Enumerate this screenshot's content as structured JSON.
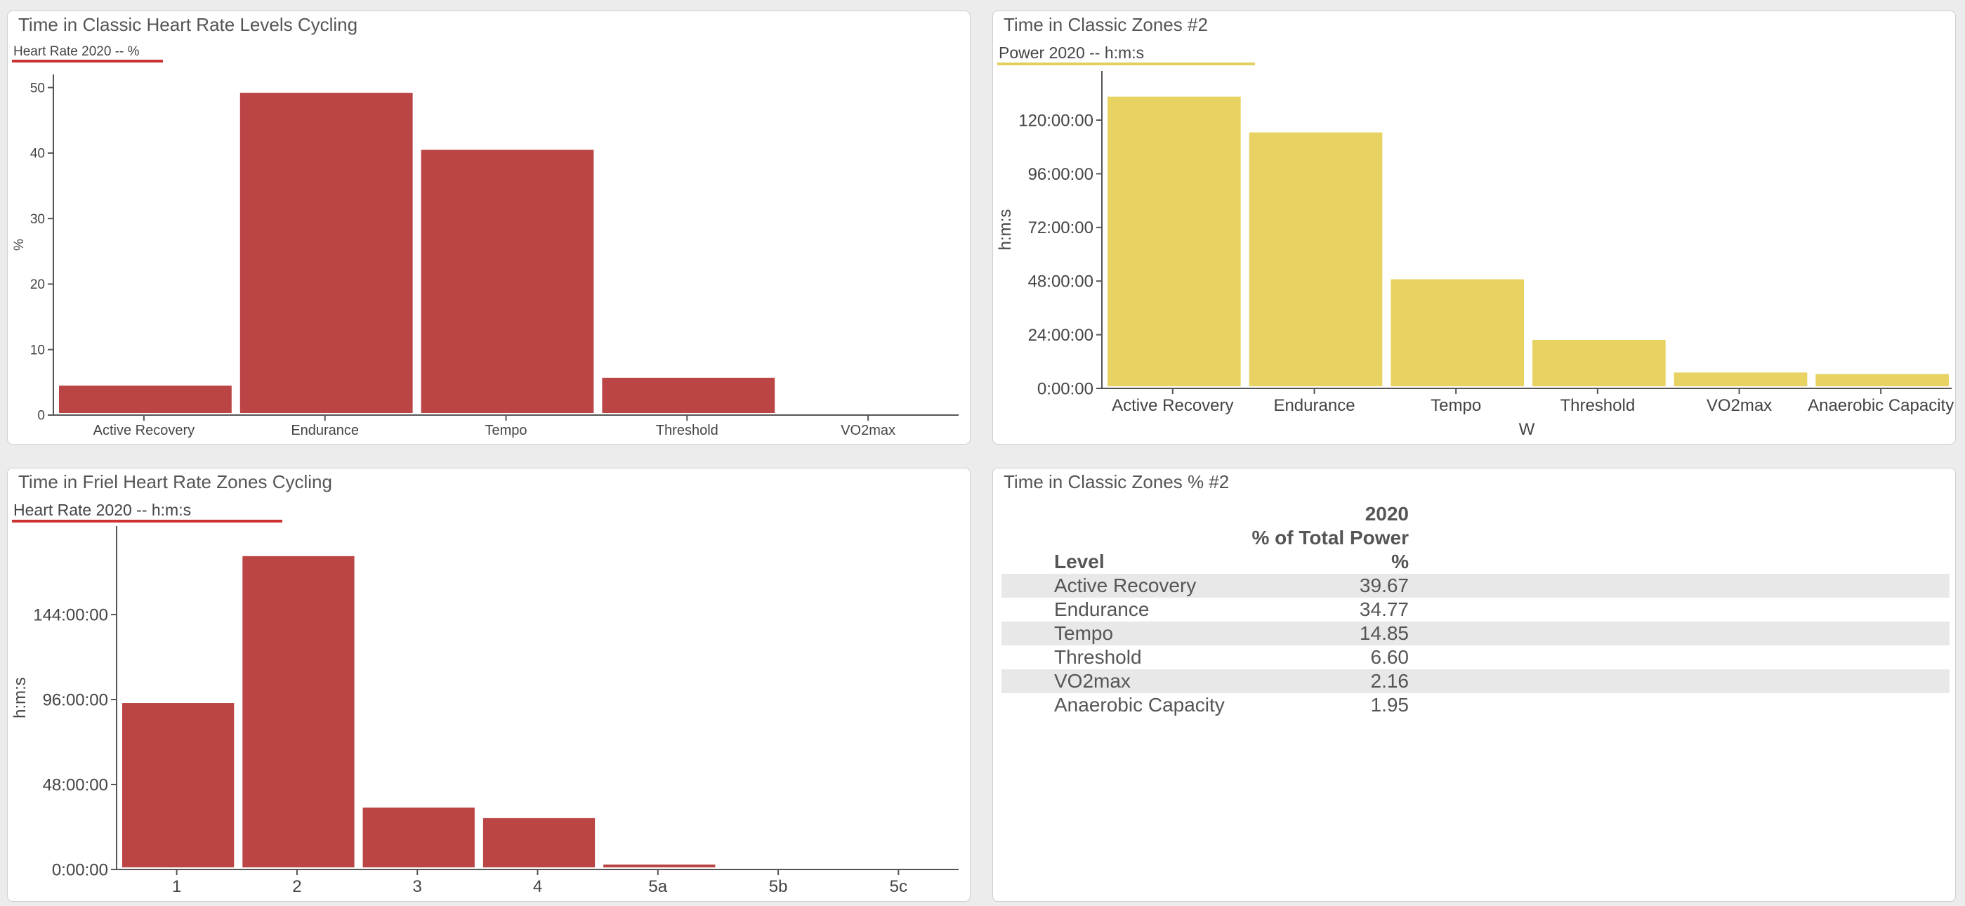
{
  "charts": [
    {
      "title": "Time in Classic Heart Rate Levels Cycling",
      "legend": "Heart Rate   2020   -- %",
      "color": "#bb4545"
    },
    {
      "title": "Time in Classic Zones #2",
      "legend": "Power   2020   -- h:m:s",
      "color": "#e7d262"
    },
    {
      "title": "Time in Friel Heart Rate Zones Cycling",
      "legend": "Heart Rate   2020   -- h:m:s",
      "color": "#bb4545"
    }
  ],
  "chart_data": [
    {
      "type": "bar",
      "title": "Time in Classic Heart Rate Levels Cycling",
      "categories": [
        "Active Recovery",
        "Endurance",
        "Tempo",
        "Threshold",
        "VO2max"
      ],
      "values": [
        4.5,
        49.2,
        40.5,
        5.7,
        0
      ],
      "ylabel": "%",
      "xlabel": "",
      "ylim": [
        0,
        52
      ],
      "yticks": [
        0,
        10,
        20,
        30,
        40,
        50
      ],
      "ytick_labels": [
        "0",
        "10",
        "20",
        "30",
        "40",
        "50"
      ],
      "series": [
        {
          "name": "Heart Rate 2020",
          "values": [
            4.5,
            49.2,
            40.5,
            5.7,
            0
          ]
        }
      ]
    },
    {
      "type": "bar",
      "title": "Time in Classic Zones #2",
      "categories": [
        "Active Recovery",
        "Endurance",
        "Tempo",
        "Threshold",
        "VO2max",
        "Anaerobic Capacity"
      ],
      "values": [
        130.5,
        114.5,
        48.8,
        21.7,
        7.1,
        6.4
      ],
      "value_units": "hours",
      "ylabel": "h:m:s",
      "xlabel": "W",
      "ylim": [
        0,
        142
      ],
      "yticks": [
        0,
        24,
        48,
        72,
        96,
        120
      ],
      "ytick_labels": [
        "0:00:00",
        "24:00:00",
        "48:00:00",
        "72:00:00",
        "96:00:00",
        "120:00:00"
      ],
      "series": [
        {
          "name": "Power 2020",
          "values": [
            130.5,
            114.5,
            48.8,
            21.7,
            7.1,
            6.4
          ]
        }
      ]
    },
    {
      "type": "bar",
      "title": "Time in Friel Heart Rate Zones Cycling",
      "categories": [
        "1",
        "2",
        "3",
        "4",
        "5a",
        "5b",
        "5c"
      ],
      "values": [
        94,
        177,
        35,
        29,
        2.8,
        1.0,
        0
      ],
      "value_units": "hours",
      "ylabel": "h:m:s",
      "xlabel": "",
      "ylim": [
        0,
        194
      ],
      "yticks": [
        0,
        48,
        96,
        144
      ],
      "ytick_labels": [
        "0:00:00",
        "48:00:00",
        "96:00:00",
        "144:00:00"
      ],
      "series": [
        {
          "name": "Heart Rate 2020",
          "values": [
            94,
            177,
            35,
            29,
            2.8,
            1.0,
            0
          ]
        }
      ]
    },
    {
      "type": "table",
      "title": "Time in Classic Zones % #2",
      "header_year": "2020",
      "header_metric": "% of Total Power",
      "col_level": "Level",
      "col_unit": "%",
      "rows": [
        {
          "level": "Active Recovery",
          "value": "39.67"
        },
        {
          "level": "Endurance",
          "value": "34.77"
        },
        {
          "level": "Tempo",
          "value": "14.85"
        },
        {
          "level": "Threshold",
          "value": "6.60"
        },
        {
          "level": "VO2max",
          "value": "2.16"
        },
        {
          "level": "Anaerobic Capacity",
          "value": "1.95"
        }
      ]
    }
  ]
}
